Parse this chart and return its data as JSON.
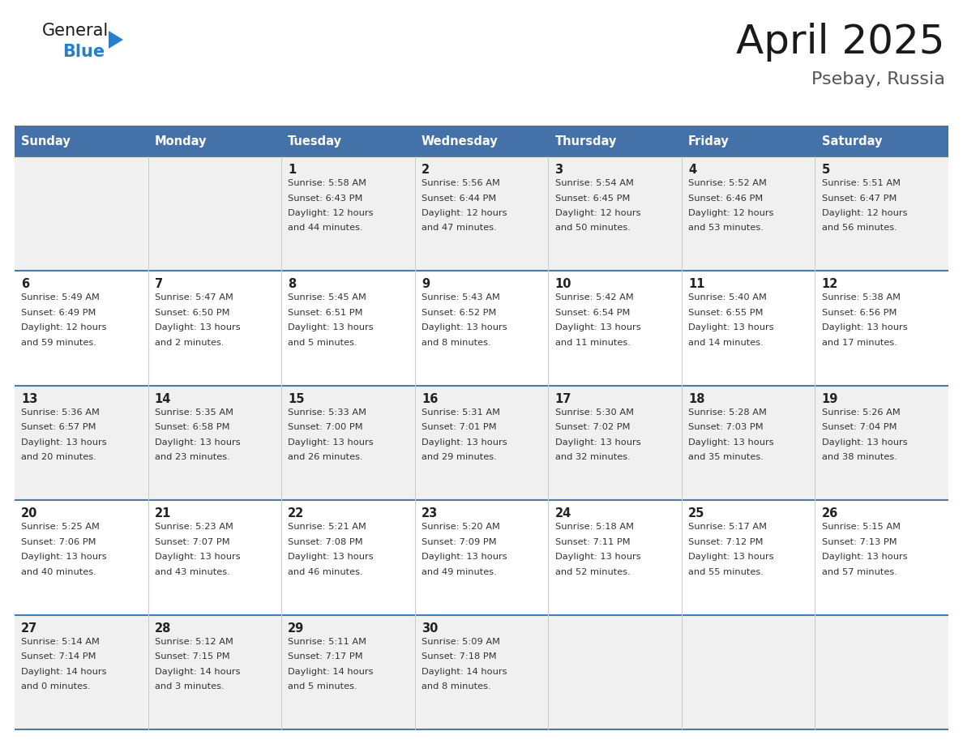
{
  "title": "April 2025",
  "subtitle": "Psebay, Russia",
  "days_of_week": [
    "Sunday",
    "Monday",
    "Tuesday",
    "Wednesday",
    "Thursday",
    "Friday",
    "Saturday"
  ],
  "header_bg": "#4472a8",
  "header_text": "#ffffff",
  "row_bg_odd": "#f0f0f0",
  "row_bg_even": "#ffffff",
  "divider_color": "#4a7aaa",
  "text_color": "#333333",
  "number_color": "#222222",
  "calendar_data": [
    [
      {
        "day": null,
        "info": null
      },
      {
        "day": null,
        "info": null
      },
      {
        "day": 1,
        "info": "Sunrise: 5:58 AM\nSunset: 6:43 PM\nDaylight: 12 hours\nand 44 minutes."
      },
      {
        "day": 2,
        "info": "Sunrise: 5:56 AM\nSunset: 6:44 PM\nDaylight: 12 hours\nand 47 minutes."
      },
      {
        "day": 3,
        "info": "Sunrise: 5:54 AM\nSunset: 6:45 PM\nDaylight: 12 hours\nand 50 minutes."
      },
      {
        "day": 4,
        "info": "Sunrise: 5:52 AM\nSunset: 6:46 PM\nDaylight: 12 hours\nand 53 minutes."
      },
      {
        "day": 5,
        "info": "Sunrise: 5:51 AM\nSunset: 6:47 PM\nDaylight: 12 hours\nand 56 minutes."
      }
    ],
    [
      {
        "day": 6,
        "info": "Sunrise: 5:49 AM\nSunset: 6:49 PM\nDaylight: 12 hours\nand 59 minutes."
      },
      {
        "day": 7,
        "info": "Sunrise: 5:47 AM\nSunset: 6:50 PM\nDaylight: 13 hours\nand 2 minutes."
      },
      {
        "day": 8,
        "info": "Sunrise: 5:45 AM\nSunset: 6:51 PM\nDaylight: 13 hours\nand 5 minutes."
      },
      {
        "day": 9,
        "info": "Sunrise: 5:43 AM\nSunset: 6:52 PM\nDaylight: 13 hours\nand 8 minutes."
      },
      {
        "day": 10,
        "info": "Sunrise: 5:42 AM\nSunset: 6:54 PM\nDaylight: 13 hours\nand 11 minutes."
      },
      {
        "day": 11,
        "info": "Sunrise: 5:40 AM\nSunset: 6:55 PM\nDaylight: 13 hours\nand 14 minutes."
      },
      {
        "day": 12,
        "info": "Sunrise: 5:38 AM\nSunset: 6:56 PM\nDaylight: 13 hours\nand 17 minutes."
      }
    ],
    [
      {
        "day": 13,
        "info": "Sunrise: 5:36 AM\nSunset: 6:57 PM\nDaylight: 13 hours\nand 20 minutes."
      },
      {
        "day": 14,
        "info": "Sunrise: 5:35 AM\nSunset: 6:58 PM\nDaylight: 13 hours\nand 23 minutes."
      },
      {
        "day": 15,
        "info": "Sunrise: 5:33 AM\nSunset: 7:00 PM\nDaylight: 13 hours\nand 26 minutes."
      },
      {
        "day": 16,
        "info": "Sunrise: 5:31 AM\nSunset: 7:01 PM\nDaylight: 13 hours\nand 29 minutes."
      },
      {
        "day": 17,
        "info": "Sunrise: 5:30 AM\nSunset: 7:02 PM\nDaylight: 13 hours\nand 32 minutes."
      },
      {
        "day": 18,
        "info": "Sunrise: 5:28 AM\nSunset: 7:03 PM\nDaylight: 13 hours\nand 35 minutes."
      },
      {
        "day": 19,
        "info": "Sunrise: 5:26 AM\nSunset: 7:04 PM\nDaylight: 13 hours\nand 38 minutes."
      }
    ],
    [
      {
        "day": 20,
        "info": "Sunrise: 5:25 AM\nSunset: 7:06 PM\nDaylight: 13 hours\nand 40 minutes."
      },
      {
        "day": 21,
        "info": "Sunrise: 5:23 AM\nSunset: 7:07 PM\nDaylight: 13 hours\nand 43 minutes."
      },
      {
        "day": 22,
        "info": "Sunrise: 5:21 AM\nSunset: 7:08 PM\nDaylight: 13 hours\nand 46 minutes."
      },
      {
        "day": 23,
        "info": "Sunrise: 5:20 AM\nSunset: 7:09 PM\nDaylight: 13 hours\nand 49 minutes."
      },
      {
        "day": 24,
        "info": "Sunrise: 5:18 AM\nSunset: 7:11 PM\nDaylight: 13 hours\nand 52 minutes."
      },
      {
        "day": 25,
        "info": "Sunrise: 5:17 AM\nSunset: 7:12 PM\nDaylight: 13 hours\nand 55 minutes."
      },
      {
        "day": 26,
        "info": "Sunrise: 5:15 AM\nSunset: 7:13 PM\nDaylight: 13 hours\nand 57 minutes."
      }
    ],
    [
      {
        "day": 27,
        "info": "Sunrise: 5:14 AM\nSunset: 7:14 PM\nDaylight: 14 hours\nand 0 minutes."
      },
      {
        "day": 28,
        "info": "Sunrise: 5:12 AM\nSunset: 7:15 PM\nDaylight: 14 hours\nand 3 minutes."
      },
      {
        "day": 29,
        "info": "Sunrise: 5:11 AM\nSunset: 7:17 PM\nDaylight: 14 hours\nand 5 minutes."
      },
      {
        "day": 30,
        "info": "Sunrise: 5:09 AM\nSunset: 7:18 PM\nDaylight: 14 hours\nand 8 minutes."
      },
      {
        "day": null,
        "info": null
      },
      {
        "day": null,
        "info": null
      },
      {
        "day": null,
        "info": null
      }
    ]
  ],
  "logo_color_general": "#1a1a1a",
  "logo_color_blue": "#2a7dc9",
  "logo_triangle_color": "#2a7dc9",
  "title_color": "#1a1a1a",
  "subtitle_color": "#555555"
}
